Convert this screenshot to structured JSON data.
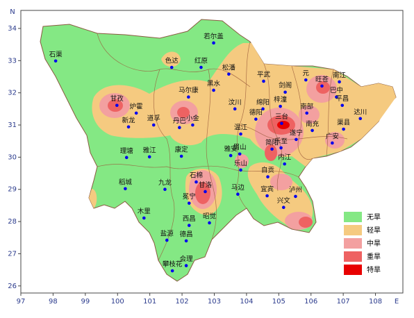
{
  "map": {
    "north_label": "N",
    "east_label": "E",
    "xlim": [
      97,
      108.85
    ],
    "ylim": [
      25.78,
      34.56
    ],
    "xticks": [
      97,
      98,
      99,
      100,
      101,
      102,
      103,
      104,
      105,
      106,
      107,
      108
    ],
    "yticks": [
      26,
      27,
      28,
      29,
      30,
      31,
      32,
      33,
      34
    ],
    "point_color": "#0000ee",
    "legend": [
      {
        "label": "无旱",
        "color": "#84e884"
      },
      {
        "label": "轻旱",
        "color": "#f5ca80"
      },
      {
        "label": "中旱",
        "color": "#f3a0a0"
      },
      {
        "label": "重旱",
        "color": "#ee6262"
      },
      {
        "label": "特旱",
        "color": "#e80000"
      }
    ],
    "cities": [
      {
        "name": "石渠",
        "lon": 98.08,
        "lat": 32.99
      },
      {
        "name": "色达",
        "lon": 101.68,
        "lat": 32.79
      },
      {
        "name": "若尔盖",
        "lon": 102.98,
        "lat": 33.55
      },
      {
        "name": "红原",
        "lon": 102.59,
        "lat": 32.79
      },
      {
        "name": "松潘",
        "lon": 103.45,
        "lat": 32.58
      },
      {
        "name": "黑水",
        "lon": 102.98,
        "lat": 32.08
      },
      {
        "name": "马尔康",
        "lon": 102.2,
        "lat": 31.87
      },
      {
        "name": "平武",
        "lon": 104.53,
        "lat": 32.36
      },
      {
        "name": "元",
        "lon": 105.84,
        "lat": 32.4
      },
      {
        "name": "旺苍",
        "lon": 106.34,
        "lat": 32.21
      },
      {
        "name": "南江",
        "lon": 106.88,
        "lat": 32.34
      },
      {
        "name": "巴中",
        "lon": 106.79,
        "lat": 31.87
      },
      {
        "name": "平昌",
        "lon": 106.97,
        "lat": 31.61
      },
      {
        "name": "达川",
        "lon": 107.53,
        "lat": 31.2
      },
      {
        "name": "剑阁",
        "lon": 105.2,
        "lat": 32.02
      },
      {
        "name": "梓潼",
        "lon": 105.05,
        "lat": 31.58
      },
      {
        "name": "绵阳",
        "lon": 104.51,
        "lat": 31.5
      },
      {
        "name": "南部",
        "lon": 105.87,
        "lat": 31.37
      },
      {
        "name": "三台",
        "lon": 105.09,
        "lat": 31.05
      },
      {
        "name": "汶川",
        "lon": 103.64,
        "lat": 31.5
      },
      {
        "name": "甘孜",
        "lon": 99.98,
        "lat": 31.61
      },
      {
        "name": "炉霍",
        "lon": 100.58,
        "lat": 31.37
      },
      {
        "name": "新龙",
        "lon": 100.34,
        "lat": 30.94
      },
      {
        "name": "道孚",
        "lon": 101.12,
        "lat": 31.0
      },
      {
        "name": "丹巴",
        "lon": 101.92,
        "lat": 30.92
      },
      {
        "name": "小金",
        "lon": 102.33,
        "lat": 31.0
      },
      {
        "name": "德阳",
        "lon": 104.29,
        "lat": 31.18
      },
      {
        "name": "温江",
        "lon": 103.82,
        "lat": 30.72
      },
      {
        "name": "遂宁",
        "lon": 105.54,
        "lat": 30.55
      },
      {
        "name": "南充",
        "lon": 106.04,
        "lat": 30.83
      },
      {
        "name": "广安",
        "lon": 106.66,
        "lat": 30.44
      },
      {
        "name": "渠县",
        "lon": 107.01,
        "lat": 30.87
      },
      {
        "name": "简阳",
        "lon": 104.79,
        "lat": 30.25
      },
      {
        "name": "乐至",
        "lon": 105.07,
        "lat": 30.29
      },
      {
        "name": "内江",
        "lon": 105.18,
        "lat": 29.79
      },
      {
        "name": "雅安",
        "lon": 103.51,
        "lat": 30.05
      },
      {
        "name": "眉山",
        "lon": 103.79,
        "lat": 30.1
      },
      {
        "name": "乐山",
        "lon": 103.82,
        "lat": 29.6
      },
      {
        "name": "理塘",
        "lon": 100.28,
        "lat": 29.99
      },
      {
        "name": "雅江",
        "lon": 100.99,
        "lat": 30.01
      },
      {
        "name": "康定",
        "lon": 101.98,
        "lat": 30.03
      },
      {
        "name": "自贡",
        "lon": 104.66,
        "lat": 29.39
      },
      {
        "name": "稻城",
        "lon": 100.24,
        "lat": 29.02
      },
      {
        "name": "九龙",
        "lon": 101.47,
        "lat": 29.0
      },
      {
        "name": "石棉",
        "lon": 102.44,
        "lat": 29.23
      },
      {
        "name": "甘洛",
        "lon": 102.72,
        "lat": 28.93
      },
      {
        "name": "马边",
        "lon": 103.73,
        "lat": 28.85
      },
      {
        "name": "宜宾",
        "lon": 104.64,
        "lat": 28.8
      },
      {
        "name": "泸州",
        "lon": 105.52,
        "lat": 28.78
      },
      {
        "name": "木里",
        "lon": 100.82,
        "lat": 28.11
      },
      {
        "name": "冕宁",
        "lon": 102.22,
        "lat": 28.57
      },
      {
        "name": "西昌",
        "lon": 102.22,
        "lat": 27.88
      },
      {
        "name": "昭觉",
        "lon": 102.85,
        "lat": 27.96
      },
      {
        "name": "兴文",
        "lon": 105.15,
        "lat": 28.44
      },
      {
        "name": "盐源",
        "lon": 101.53,
        "lat": 27.42
      },
      {
        "name": "德昌",
        "lon": 102.13,
        "lat": 27.4
      },
      {
        "name": "会理",
        "lon": 102.13,
        "lat": 26.63
      },
      {
        "name": "攀枝花",
        "lon": 101.7,
        "lat": 26.47
      }
    ]
  }
}
